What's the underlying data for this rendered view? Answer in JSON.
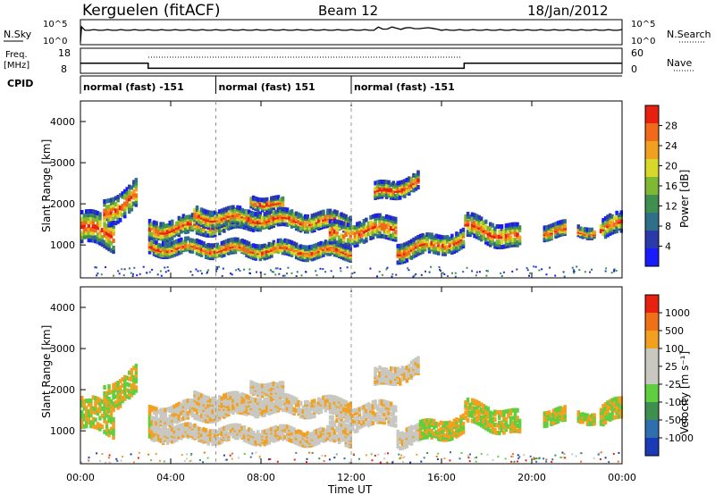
{
  "header": {
    "station": "Kerguelen (fitACF)",
    "beam": "Beam 12",
    "date": "18/Jan/2012"
  },
  "top_panels": {
    "nsky_label": "N.Sky",
    "nsearch_label": "N.Search",
    "freq_label_1": "Freq.",
    "freq_label_2": "[MHz]",
    "nave_label": "Nave",
    "cpid_label": "CPID",
    "left_ticks_row1": [
      "10^5",
      "10^0"
    ],
    "right_ticks_row1": [
      "10^5",
      "10^0"
    ],
    "left_ticks_row2": [
      "18",
      "8"
    ],
    "right_ticks_row2": [
      "60",
      "0"
    ]
  },
  "cpid_segments": [
    {
      "label": "normal (fast) -151",
      "start_h": 0,
      "end_h": 6
    },
    {
      "label": "normal (fast) 151",
      "start_h": 6,
      "end_h": 12
    },
    {
      "label": "normal (fast) -151",
      "start_h": 12,
      "end_h": 24
    }
  ],
  "axes": {
    "xlabel": "Time UT",
    "ylabel": "Slant Range [km]",
    "xticks": [
      "00:00",
      "04:00",
      "08:00",
      "12:00",
      "16:00",
      "20:00",
      "00:00"
    ],
    "yticks": [
      "1000",
      "2000",
      "3000",
      "4000"
    ]
  },
  "colorbars": {
    "power": {
      "label": "Power [dB]",
      "ticks": [
        "4",
        "8",
        "12",
        "16",
        "20",
        "24",
        "28"
      ],
      "colors": [
        "#1a1aff",
        "#2a3aa8",
        "#2f6f8a",
        "#3f8f4f",
        "#7fb832",
        "#d8d82a",
        "#f2a020",
        "#f06a1a",
        "#e82010"
      ]
    },
    "velocity": {
      "label": "Velocity [m s⁻¹]",
      "ticks": [
        "1000",
        "500",
        "100",
        "25",
        "-25",
        "-100",
        "-500",
        "-1000"
      ],
      "colors": [
        "#1a3ab8",
        "#2f6fb0",
        "#3f8f4f",
        "#5fcf3f",
        "#c8c8c0",
        "#c8c8c0",
        "#f2a020",
        "#f07018",
        "#e82010"
      ]
    }
  },
  "chart_data": [
    {
      "type": "line",
      "name": "N.Sky",
      "x_hours": [
        0,
        24
      ],
      "note": "sky noise trace near 10^5 scale"
    },
    {
      "type": "line",
      "name": "Freq",
      "x_hours": [
        0,
        3,
        3,
        17,
        17,
        24
      ],
      "y_mhz": [
        12,
        12,
        10,
        10,
        12,
        12
      ],
      "ylim": [
        8,
        18
      ]
    },
    {
      "type": "heatmap",
      "name": "Power",
      "xlim_hours": [
        0,
        24
      ],
      "ylim_km": [
        200,
        4500
      ],
      "zlim_db": [
        0,
        30
      ]
    },
    {
      "type": "heatmap",
      "name": "Velocity",
      "xlim_hours": [
        0,
        24
      ],
      "ylim_km": [
        200,
        4500
      ],
      "zlim_ms": [
        -1000,
        1000
      ]
    }
  ]
}
